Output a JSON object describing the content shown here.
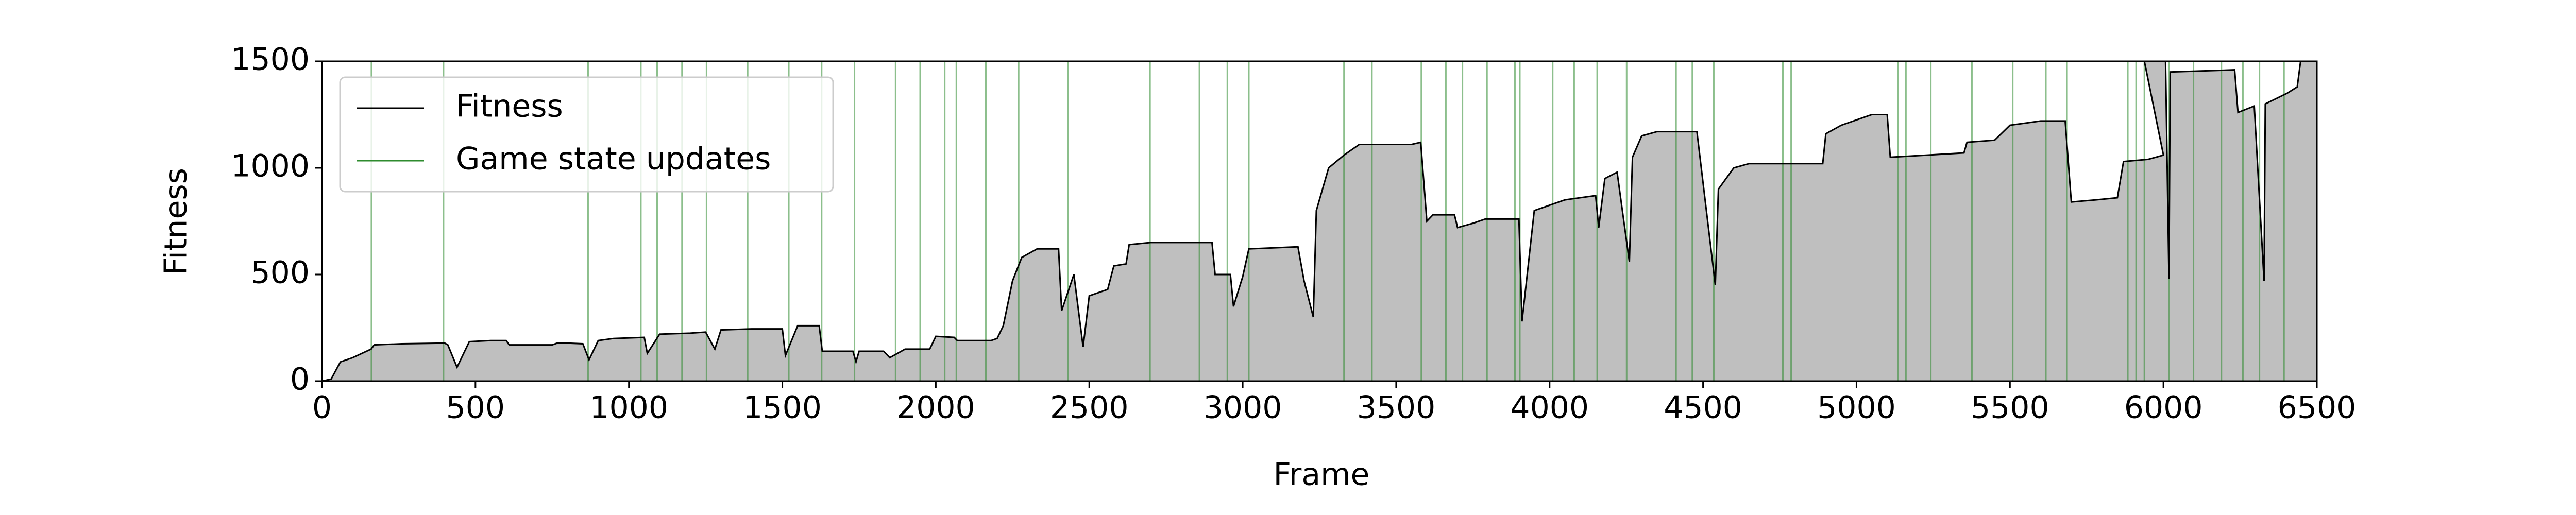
{
  "chart_data": {
    "type": "line",
    "xlabel": "Frame",
    "ylabel": "Fitness",
    "xlim": [
      0,
      6500
    ],
    "ylim": [
      0,
      1500
    ],
    "xticks": [
      0,
      500,
      1000,
      1500,
      2000,
      2500,
      3000,
      3500,
      4000,
      4500,
      5000,
      5500,
      6000,
      6500
    ],
    "yticks": [
      0,
      500,
      1000,
      1500
    ],
    "legend": "upper left",
    "series": [
      {
        "name": "Fitness",
        "color": "#000000",
        "fill_color": "#bfbfbf",
        "x": [
          0,
          30,
          60,
          100,
          160,
          170,
          260,
          400,
          410,
          440,
          480,
          550,
          600,
          610,
          750,
          770,
          850,
          870,
          900,
          950,
          1050,
          1060,
          1100,
          1200,
          1250,
          1280,
          1300,
          1400,
          1500,
          1510,
          1550,
          1620,
          1630,
          1730,
          1740,
          1750,
          1830,
          1850,
          1900,
          1980,
          2000,
          2060,
          2070,
          2180,
          2200,
          2220,
          2250,
          2280,
          2330,
          2400,
          2410,
          2450,
          2480,
          2500,
          2560,
          2580,
          2620,
          2630,
          2700,
          2900,
          2910,
          2960,
          2970,
          3000,
          3020,
          3180,
          3200,
          3230,
          3240,
          3280,
          3330,
          3380,
          3550,
          3580,
          3600,
          3620,
          3690,
          3700,
          3750,
          3790,
          3900,
          3910,
          3950,
          4050,
          4150,
          4160,
          4180,
          4220,
          4260,
          4270,
          4300,
          4350,
          4480,
          4540,
          4550,
          4600,
          4650,
          4890,
          4900,
          4950,
          5050,
          5100,
          5110,
          5350,
          5360,
          5450,
          5500,
          5600,
          5680,
          5700,
          5780,
          5850,
          5870,
          5950,
          6000,
          5938,
          6007,
          6018,
          6022,
          6232,
          6243,
          6296,
          6328,
          6332,
          6403,
          6436,
          6447,
          6500
        ],
        "values": [
          0,
          10,
          90,
          110,
          150,
          170,
          175,
          178,
          170,
          65,
          185,
          190,
          190,
          170,
          170,
          180,
          175,
          100,
          190,
          200,
          205,
          130,
          220,
          225,
          230,
          150,
          240,
          245,
          245,
          120,
          260,
          260,
          140,
          140,
          90,
          140,
          140,
          110,
          150,
          150,
          210,
          205,
          190,
          190,
          200,
          260,
          470,
          580,
          620,
          620,
          330,
          500,
          160,
          400,
          430,
          540,
          550,
          640,
          650,
          650,
          500,
          500,
          350,
          490,
          620,
          630,
          470,
          300,
          800,
          1000,
          1060,
          1110,
          1110,
          1120,
          750,
          780,
          780,
          720,
          740,
          760,
          760,
          280,
          800,
          850,
          870,
          720,
          950,
          980,
          560,
          1050,
          1150,
          1170,
          1170,
          450,
          900,
          1000,
          1020,
          1020,
          1160,
          1200,
          1250,
          1250,
          1050,
          1070,
          1120,
          1130,
          1200,
          1220,
          1220,
          840,
          850,
          860,
          1030,
          1040,
          1060,
          1500,
          1500,
          480,
          1450,
          1460,
          1260,
          1290,
          470,
          1300,
          1350,
          1380,
          1500,
          1500
        ]
      }
    ],
    "events": {
      "name": "Game state updates",
      "color": "#2e8b2e",
      "x": [
        161,
        396,
        867,
        1039,
        1092,
        1173,
        1253,
        1387,
        1521,
        1628,
        1735,
        1869,
        1949,
        2029,
        2067,
        2163,
        2270,
        2431,
        2698,
        2859,
        2950,
        3020,
        3330,
        3421,
        3582,
        3662,
        3716,
        3796,
        3887,
        3903,
        4010,
        4080,
        4155,
        4251,
        4412,
        4465,
        4535,
        4760,
        4787,
        5135,
        5161,
        5242,
        5376,
        5509,
        5617,
        5686,
        5884,
        5911,
        5938,
        6018,
        6098,
        6189,
        6259,
        6313,
        6393
      ]
    }
  }
}
